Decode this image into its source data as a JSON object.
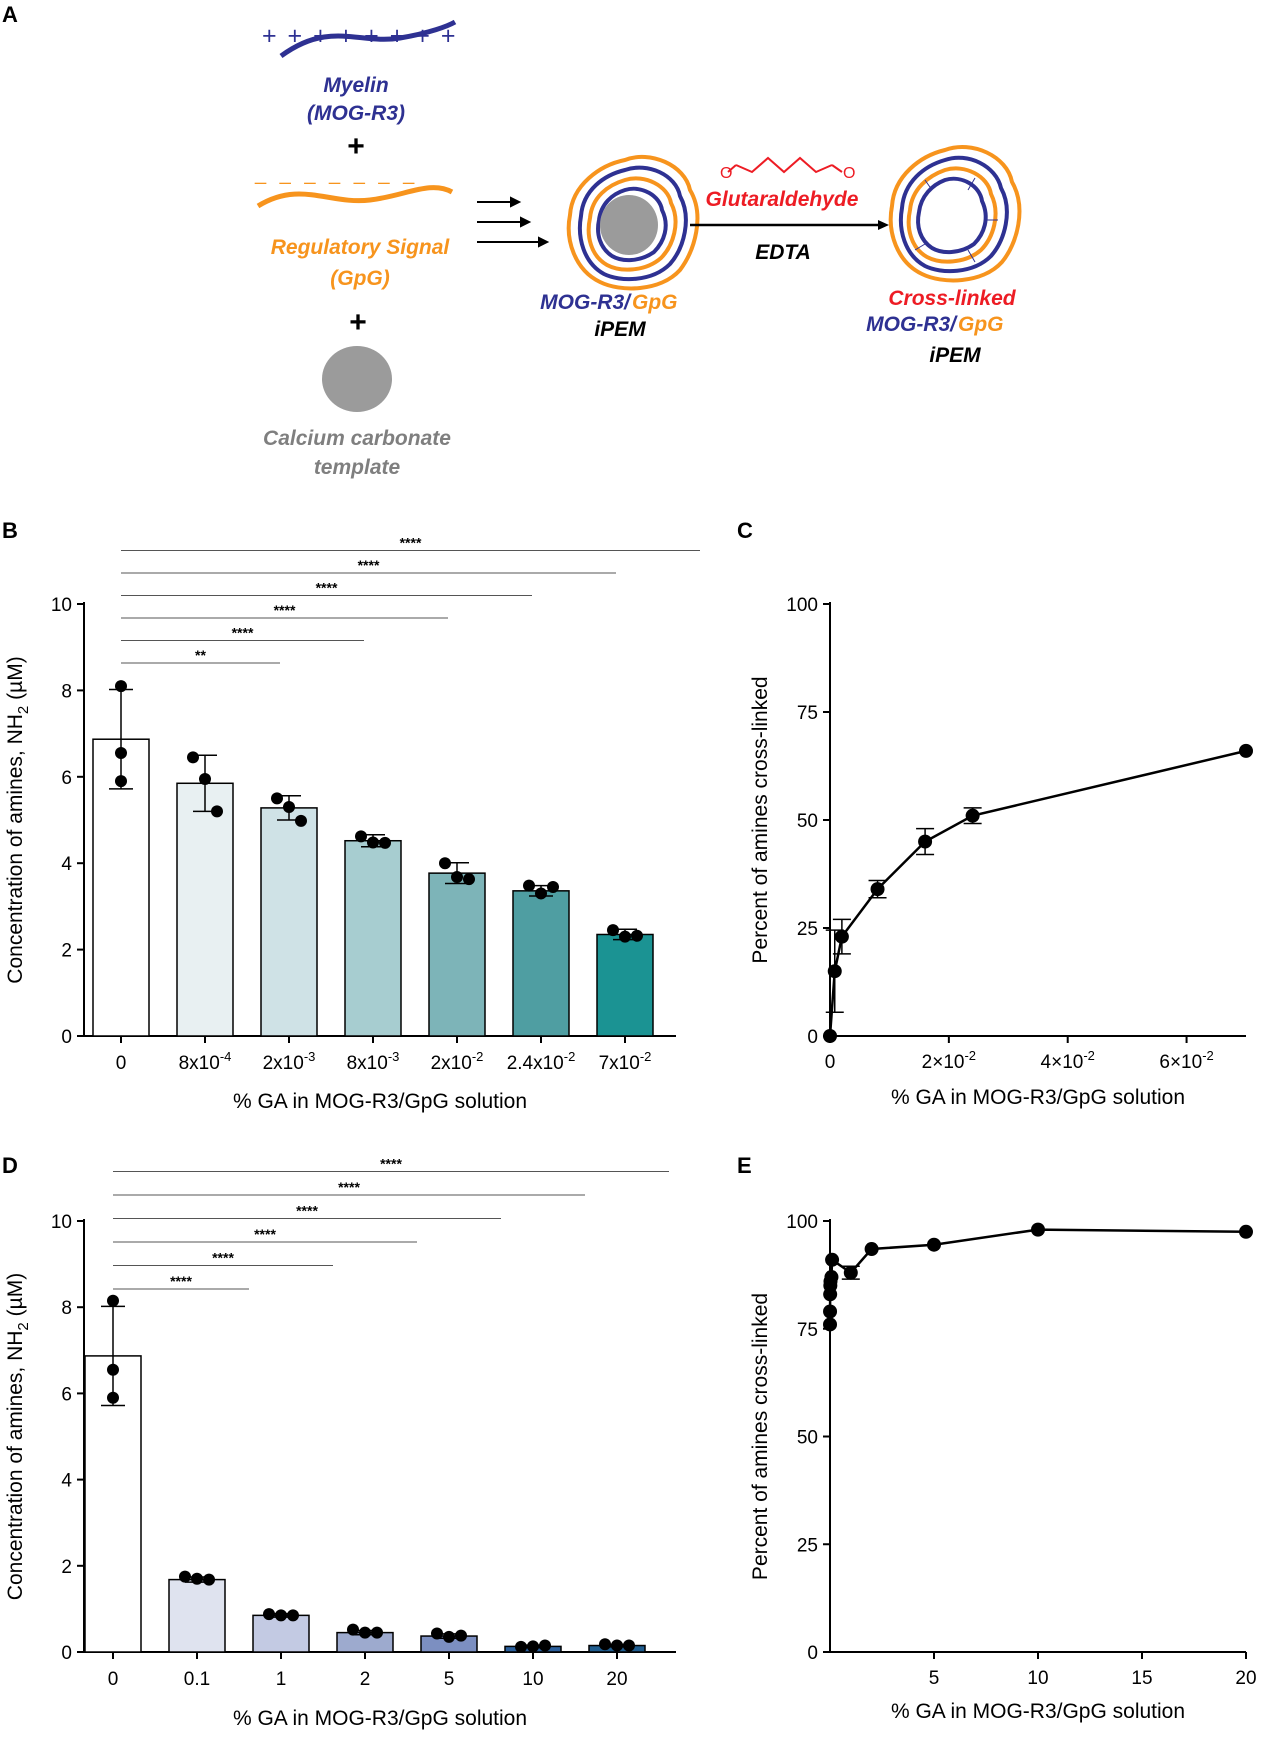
{
  "panels": {
    "A": "A",
    "B": "B",
    "C": "C",
    "D": "D",
    "E": "E"
  },
  "colors": {
    "blue": "#2e3192",
    "orange": "#f7941d",
    "red": "#ed1c24",
    "gray": "#7f7f7f",
    "template_fill": "#9b9b9b"
  },
  "schematic": {
    "plus_signs": "+ + + + + + + +",
    "minus_signs": "_ _ _ _ _ _ _",
    "myelin": "Myelin",
    "myelin_sub": "(MOG-R3)",
    "plus1": "+",
    "regulatory": "Regulatory Signal",
    "regulatory_sub": "(GpG)",
    "plus2": "+",
    "calcium_1": "Calcium carbonate",
    "calcium_2": "template",
    "ipem1_blue": "MOG-R3/",
    "ipem1_orange": "GpG",
    "ipem1_black": "iPEM",
    "glutaraldehyde": "Glutaraldehyde",
    "edta": "EDTA",
    "ald_o1": "O",
    "ald_o2": "O",
    "cross_linked": "Cross-linked",
    "ipem2_blue": "MOG-R3/",
    "ipem2_orange": "GpG",
    "ipem2_black": "iPEM"
  },
  "chart_data": [
    {
      "id": "B",
      "type": "bar",
      "ylabel": "Concentration of amines, NH2 (µM)",
      "xlabel": "% GA in MOG-R3/GpG solution",
      "ylim": [
        0,
        10
      ],
      "yticks": [
        "0",
        "2",
        "4",
        "6",
        "8",
        "10"
      ],
      "categories": [
        {
          "base": "0",
          "exp": ""
        },
        {
          "base": "8x10",
          "exp": "-4"
        },
        {
          "base": "2x10",
          "exp": "-3"
        },
        {
          "base": "8x10",
          "exp": "-3"
        },
        {
          "base": "2x10",
          "exp": "-2"
        },
        {
          "base": "2.4x10",
          "exp": "-2"
        },
        {
          "base": "7x10",
          "exp": "-2"
        }
      ],
      "values": [
        6.87,
        5.85,
        5.28,
        4.52,
        3.77,
        3.36,
        2.35
      ],
      "errors": [
        1.15,
        0.65,
        0.28,
        0.14,
        0.24,
        0.12,
        0.12
      ],
      "points": [
        [
          8.1,
          6.55,
          5.9
        ],
        [
          6.45,
          5.95,
          5.2
        ],
        [
          5.5,
          5.3,
          4.98
        ],
        [
          4.62,
          4.48,
          4.47
        ],
        [
          4.0,
          3.68,
          3.63
        ],
        [
          3.48,
          3.3,
          3.45
        ],
        [
          2.45,
          2.3,
          2.32
        ]
      ],
      "fills": [
        "#ffffff",
        "#e8f0f2",
        "#cfe2e6",
        "#a7cdd0",
        "#7db4b8",
        "#4f9ea2",
        "#1b9393"
      ],
      "comparisons": [
        {
          "from": 0,
          "to": 1,
          "label": "**"
        },
        {
          "from": 0,
          "to": 2,
          "label": "****"
        },
        {
          "from": 0,
          "to": 3,
          "label": "****"
        },
        {
          "from": 0,
          "to": 4,
          "label": "****"
        },
        {
          "from": 0,
          "to": 5,
          "label": "****"
        },
        {
          "from": 0,
          "to": 6,
          "label": "****"
        }
      ]
    },
    {
      "id": "C",
      "type": "line",
      "ylabel": "Percent of amines cross-linked",
      "xlabel": "% GA in MOG-R3/GpG solution",
      "xlim": [
        0,
        0.07
      ],
      "ylim": [
        0,
        100
      ],
      "yticks": [
        "0",
        "25",
        "50",
        "75",
        "100"
      ],
      "xticks": [
        {
          "value": 0,
          "base": "0",
          "exp": ""
        },
        {
          "value": 0.02,
          "base": "2×10",
          "exp": "-2"
        },
        {
          "value": 0.04,
          "base": "4×10",
          "exp": "-2"
        },
        {
          "value": 0.06,
          "base": "6×10",
          "exp": "-2"
        }
      ],
      "x": [
        0,
        0.0008,
        0.002,
        0.008,
        0.016,
        0.024,
        0.07
      ],
      "y": [
        0,
        15,
        23,
        34,
        45,
        51,
        66
      ],
      "errors": [
        0,
        9.5,
        4,
        2,
        3,
        1.8,
        0
      ]
    },
    {
      "id": "D",
      "type": "bar",
      "ylabel": "Concentration of amines, NH2 (µM)",
      "xlabel": "% GA in MOG-R3/GpG solution",
      "ylim": [
        0,
        10
      ],
      "yticks": [
        "0",
        "2",
        "4",
        "6",
        "8",
        "10"
      ],
      "categories": [
        {
          "base": "0",
          "exp": ""
        },
        {
          "base": "0.1",
          "exp": ""
        },
        {
          "base": "1",
          "exp": ""
        },
        {
          "base": "2",
          "exp": ""
        },
        {
          "base": "5",
          "exp": ""
        },
        {
          "base": "10",
          "exp": ""
        },
        {
          "base": "20",
          "exp": ""
        }
      ],
      "values": [
        6.87,
        1.68,
        0.85,
        0.45,
        0.37,
        0.13,
        0.15
      ],
      "errors": [
        1.15,
        0.06,
        0.04,
        0.05,
        0.05,
        0.03,
        0.03
      ],
      "points": [
        [
          8.15,
          6.55,
          5.9
        ],
        [
          1.75,
          1.7,
          1.68
        ],
        [
          0.88,
          0.85,
          0.85
        ],
        [
          0.52,
          0.45,
          0.45
        ],
        [
          0.43,
          0.35,
          0.38
        ],
        [
          0.12,
          0.13,
          0.15
        ],
        [
          0.18,
          0.15,
          0.15
        ]
      ],
      "fills": [
        "#ffffff",
        "#dfe3ef",
        "#c3cae3",
        "#9daace",
        "#7c8fc1",
        "#2b5f9b",
        "#1f5d8f"
      ],
      "comparisons": [
        {
          "from": 0,
          "to": 1,
          "label": "****"
        },
        {
          "from": 0,
          "to": 2,
          "label": "****"
        },
        {
          "from": 0,
          "to": 3,
          "label": "****"
        },
        {
          "from": 0,
          "to": 4,
          "label": "****"
        },
        {
          "from": 0,
          "to": 5,
          "label": "****"
        },
        {
          "from": 0,
          "to": 6,
          "label": "****"
        }
      ]
    },
    {
      "id": "E",
      "type": "line",
      "ylabel": "Percent of amines cross-linked",
      "xlabel": "% GA in MOG-R3/GpG solution",
      "xlim": [
        0,
        20
      ],
      "ylim": [
        0,
        100
      ],
      "yticks": [
        "0",
        "25",
        "50",
        "75",
        "100"
      ],
      "xticks": [
        {
          "value": 5,
          "base": "5",
          "exp": ""
        },
        {
          "value": 10,
          "base": "10",
          "exp": ""
        },
        {
          "value": 15,
          "base": "15",
          "exp": ""
        },
        {
          "value": 20,
          "base": "20",
          "exp": ""
        }
      ],
      "x": [
        0.0008,
        0.002,
        0.008,
        0.016,
        0.024,
        0.07,
        0.1,
        1,
        2,
        5,
        10,
        20
      ],
      "y": [
        76,
        79,
        83,
        85,
        86,
        87,
        91,
        88,
        93.5,
        94.5,
        98,
        97.5
      ],
      "errors": [
        0,
        0,
        0,
        0,
        0,
        0,
        0,
        1.5,
        0,
        0,
        0,
        0
      ]
    }
  ]
}
